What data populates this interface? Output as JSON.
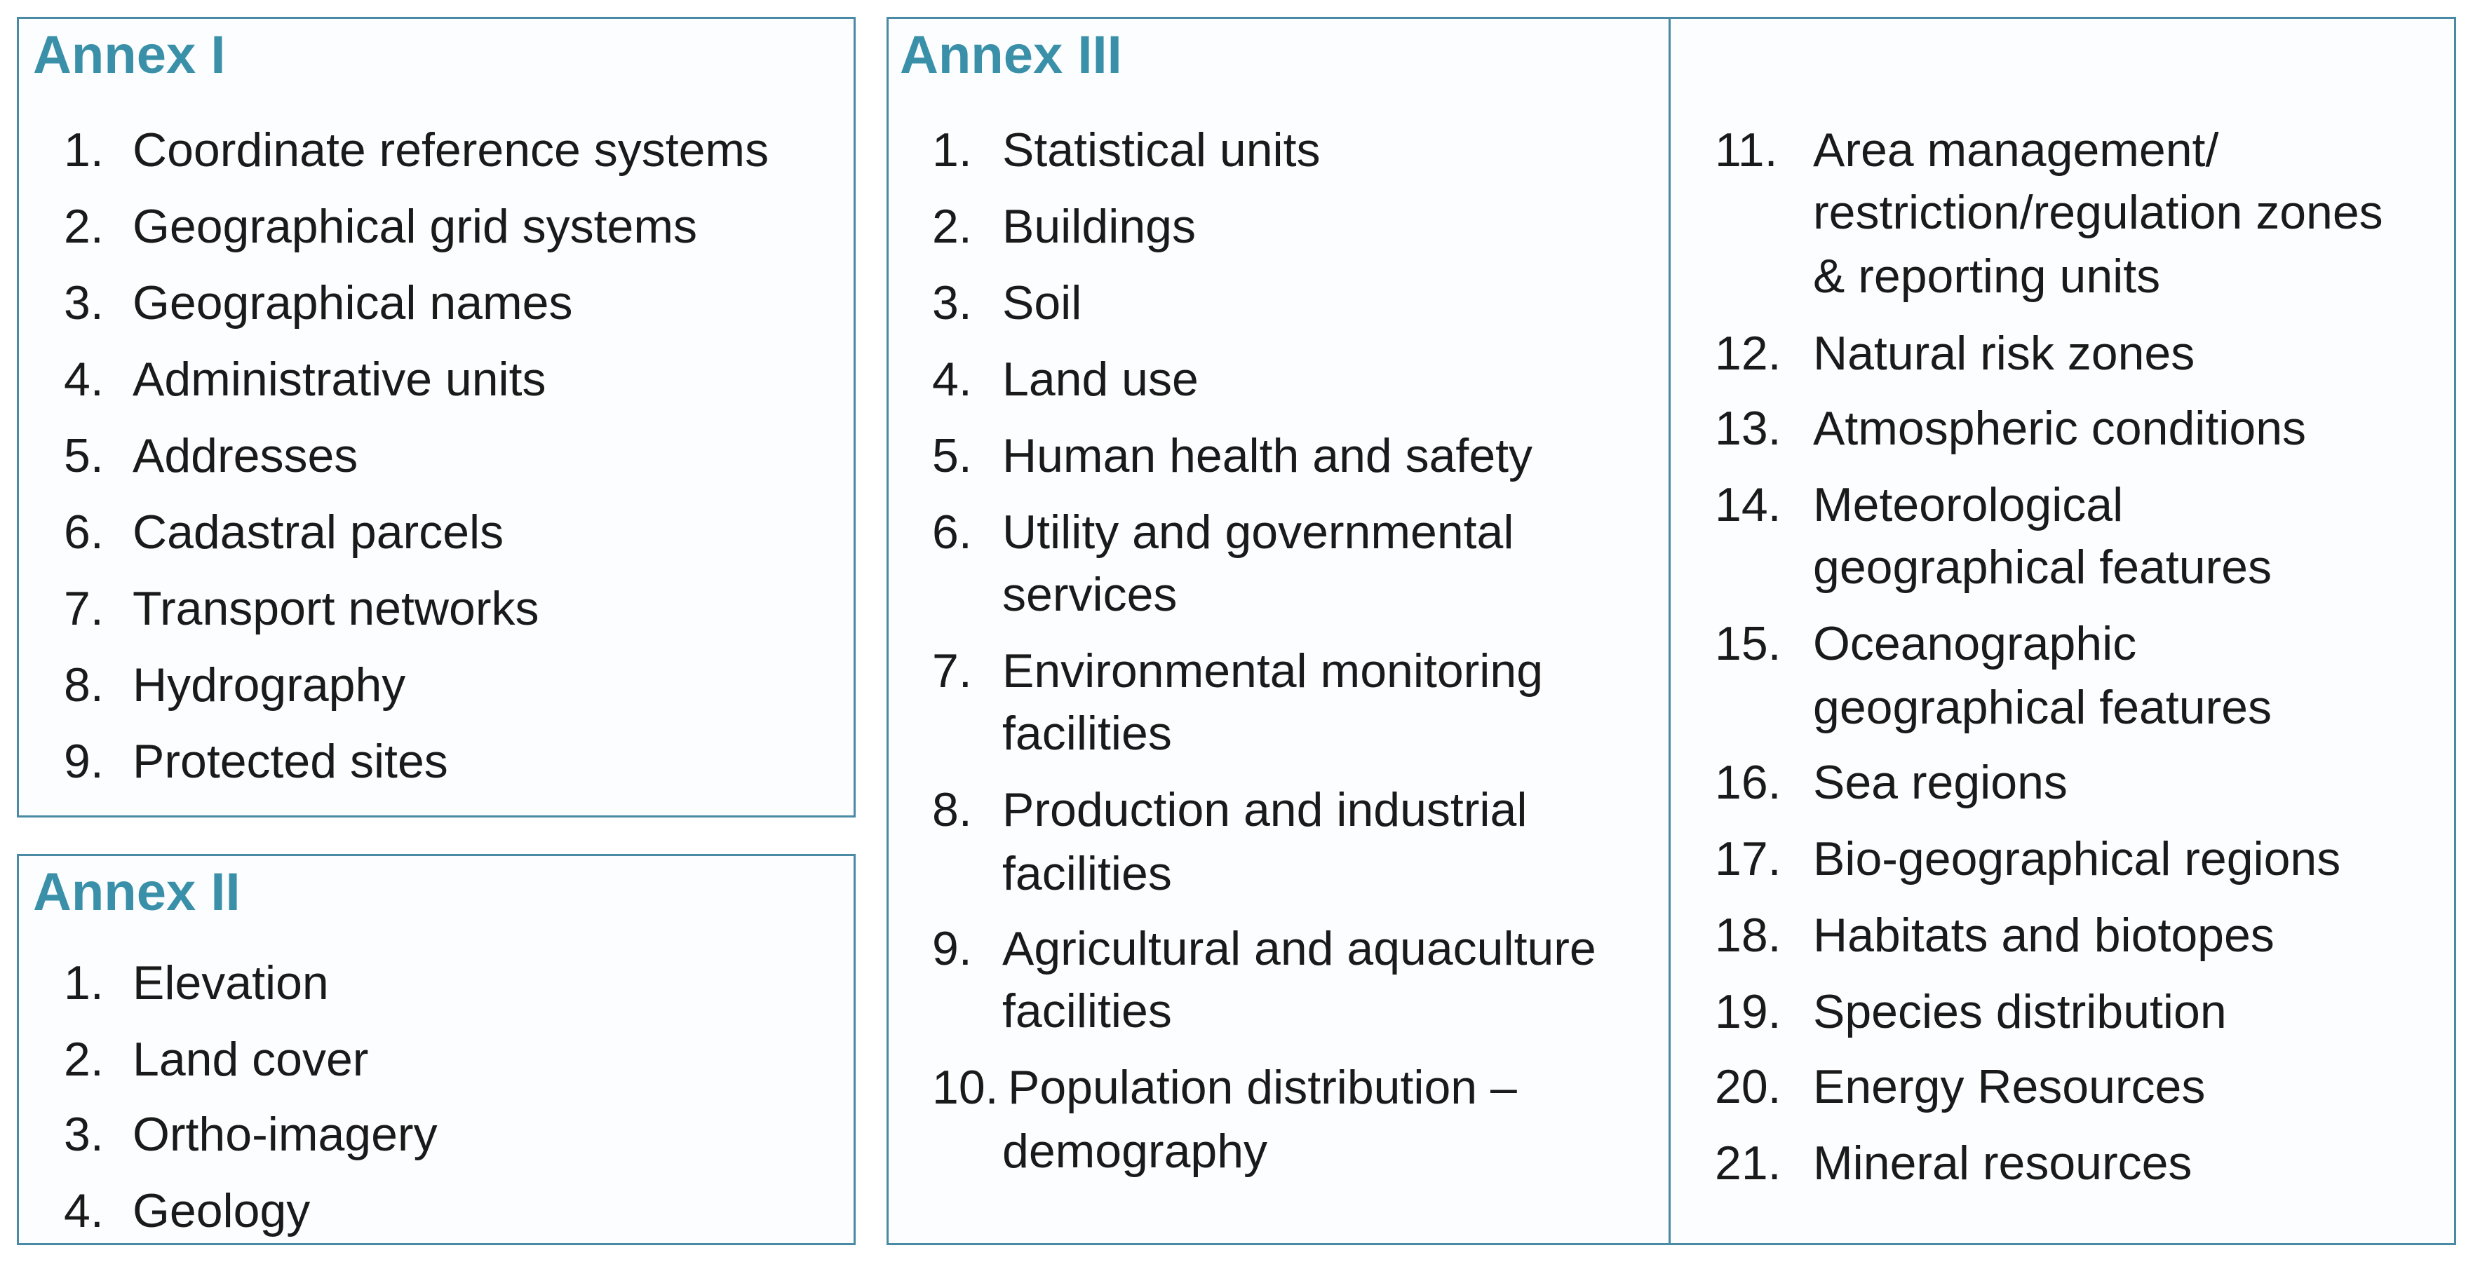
{
  "annex1": {
    "title": "Annex I",
    "items": [
      {
        "num": "1.",
        "text": "Coordinate reference systems"
      },
      {
        "num": "2.",
        "text": "Geographical grid systems"
      },
      {
        "num": "3.",
        "text": "Geographical names"
      },
      {
        "num": "4.",
        "text": "Administrative units"
      },
      {
        "num": "5.",
        "text": "Addresses"
      },
      {
        "num": "6.",
        "text": "Cadastral parcels"
      },
      {
        "num": "7.",
        "text": "Transport networks"
      },
      {
        "num": "8.",
        "text": "Hydrography"
      },
      {
        "num": "9.",
        "text": "Protected sites"
      }
    ]
  },
  "annex2": {
    "title": "Annex II",
    "items": [
      {
        "num": "1.",
        "text": "Elevation"
      },
      {
        "num": "2.",
        "text": "Land cover"
      },
      {
        "num": "3.",
        "text": "Ortho-imagery"
      },
      {
        "num": "4.",
        "text": "Geology"
      }
    ]
  },
  "annex3": {
    "title": "Annex III",
    "items": [
      {
        "num": "1.",
        "lines": [
          "Statistical units"
        ]
      },
      {
        "num": "2.",
        "lines": [
          "Buildings"
        ]
      },
      {
        "num": "3.",
        "lines": [
          "Soil"
        ]
      },
      {
        "num": "4.",
        "lines": [
          "Land use"
        ]
      },
      {
        "num": "5.",
        "lines": [
          "Human health and safety"
        ]
      },
      {
        "num": "6.",
        "lines": [
          "Utility and governmental",
          "services"
        ]
      },
      {
        "num": "7.",
        "lines": [
          "Environmental monitoring",
          "facilities"
        ]
      },
      {
        "num": "8.",
        "lines": [
          "Production and industrial",
          "facilities"
        ]
      },
      {
        "num": "9.",
        "lines": [
          "Agricultural and aquaculture",
          "facilities"
        ]
      },
      {
        "num": "10.",
        "lines": [
          "Population distribution –",
          "demography"
        ]
      },
      {
        "num": "11.",
        "lines": [
          "Area management/",
          "restriction/regulation zones",
          "& reporting units"
        ]
      },
      {
        "num": "12.",
        "lines": [
          "Natural risk zones"
        ]
      },
      {
        "num": "13.",
        "lines": [
          "Atmospheric conditions"
        ]
      },
      {
        "num": "14.",
        "lines": [
          "Meteorological",
          "geographical features"
        ]
      },
      {
        "num": "15.",
        "lines": [
          "Oceanographic",
          "geographical features"
        ]
      },
      {
        "num": "16.",
        "lines": [
          "Sea regions"
        ]
      },
      {
        "num": "17.",
        "lines": [
          "Bio-geographical regions"
        ]
      },
      {
        "num": "18.",
        "lines": [
          "Habitats and biotopes"
        ]
      },
      {
        "num": "19.",
        "lines": [
          "Species distribution"
        ]
      },
      {
        "num": "20.",
        "lines": [
          "Energy Resources"
        ]
      },
      {
        "num": "21.",
        "lines": [
          "Mineral resources"
        ]
      }
    ]
  }
}
